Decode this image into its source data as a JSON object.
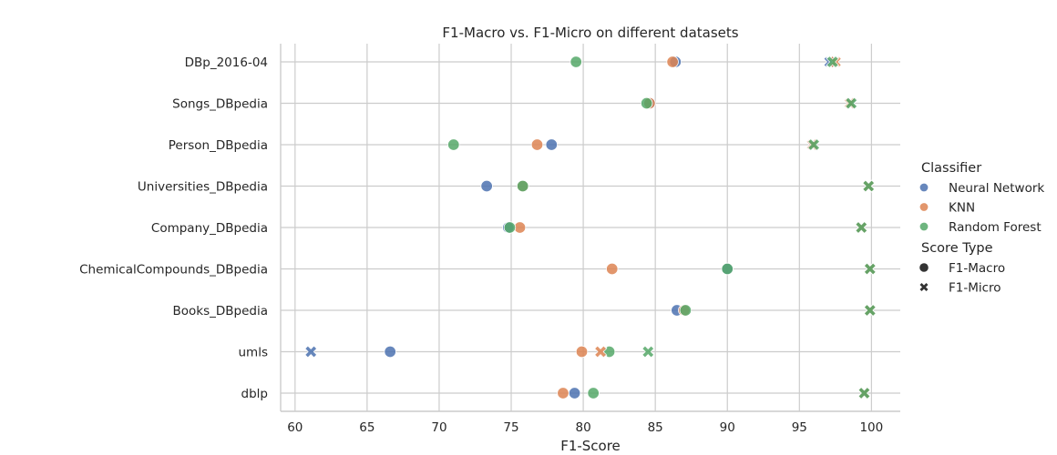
{
  "chart_data": {
    "type": "scatter",
    "title": "F1-Macro vs. F1-Micro on different datasets",
    "xlabel": "F1-Score",
    "ylabel": "",
    "xlim": [
      59,
      102
    ],
    "xticks": [
      60,
      65,
      70,
      75,
      80,
      85,
      90,
      95,
      100
    ],
    "grid": true,
    "categories": [
      "DBp_2016-04",
      "Songs_DBpedia",
      "Person_DBpedia",
      "Universities_DBpedia",
      "Company_DBpedia",
      "ChemicalCompounds_DBpedia",
      "Books_DBpedia",
      "umls",
      "dblp"
    ],
    "legend": {
      "position": "center-right",
      "hue_title": "Classifier",
      "hue_entries": [
        {
          "name": "Neural Network",
          "color": "#4c72b0"
        },
        {
          "name": "KNN",
          "color": "#dd8452"
        },
        {
          "name": "Random Forest",
          "color": "#55a868"
        }
      ],
      "style_title": "Score Type",
      "style_entries": [
        {
          "name": "F1-Macro",
          "marker": "circle"
        },
        {
          "name": "F1-Micro",
          "marker": "x"
        }
      ]
    },
    "series": [
      {
        "classifier": "Neural Network",
        "score_type": "F1-Macro",
        "values": [
          86.4,
          84.6,
          77.8,
          73.3,
          74.8,
          90.0,
          86.5,
          66.6,
          79.4
        ]
      },
      {
        "classifier": "KNN",
        "score_type": "F1-Macro",
        "values": [
          86.2,
          84.6,
          76.8,
          75.8,
          75.6,
          82.0,
          87.0,
          79.9,
          78.6
        ]
      },
      {
        "classifier": "Random Forest",
        "score_type": "F1-Macro",
        "values": [
          79.5,
          84.4,
          71.0,
          75.8,
          74.9,
          90.0,
          87.1,
          81.8,
          80.7
        ]
      },
      {
        "classifier": "Neural Network",
        "score_type": "F1-Micro",
        "values": [
          97.1,
          98.6,
          95.9,
          99.8,
          99.3,
          99.9,
          99.9,
          61.1,
          99.5
        ]
      },
      {
        "classifier": "KNN",
        "score_type": "F1-Micro",
        "values": [
          97.5,
          98.5,
          95.9,
          99.8,
          99.3,
          99.9,
          99.9,
          81.2,
          99.5
        ]
      },
      {
        "classifier": "Random Forest",
        "score_type": "F1-Micro",
        "values": [
          97.3,
          98.6,
          96.0,
          99.8,
          99.3,
          99.9,
          99.9,
          84.5,
          99.5
        ]
      }
    ]
  }
}
